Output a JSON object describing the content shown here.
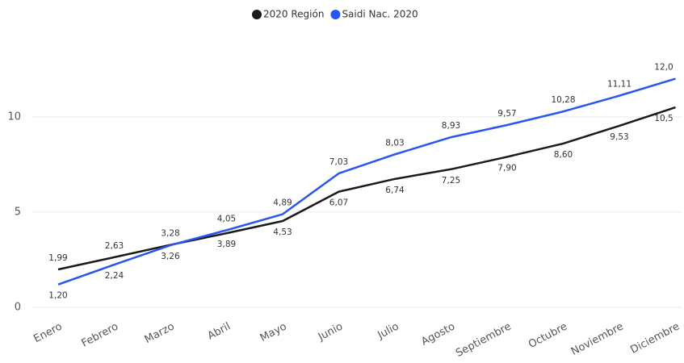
{
  "chart_data": {
    "type": "line",
    "categories": [
      "Enero",
      "Febrero",
      "Marzo",
      "Abril",
      "Mayo",
      "Junio",
      "Julio",
      "Agosto",
      "Septiembre",
      "Octubre",
      "Noviembre",
      "Diciembre"
    ],
    "series": [
      {
        "name": "2020 Región",
        "color": "#1a1a1a",
        "values": [
          1.99,
          2.63,
          3.28,
          3.89,
          4.53,
          6.07,
          6.74,
          7.25,
          7.9,
          8.6,
          9.53,
          10.5
        ],
        "value_labels": [
          "1,99",
          "2,63",
          "3,28",
          "3,89",
          "4,53",
          "6,07",
          "6,74",
          "7,25",
          "7,90",
          "8,60",
          "9,53",
          "10,5"
        ]
      },
      {
        "name": "Saidi Nac. 2020",
        "color": "#2a56f0",
        "values": [
          1.2,
          2.24,
          3.26,
          4.05,
          4.89,
          7.03,
          8.03,
          8.93,
          9.57,
          10.28,
          11.11,
          12.0
        ],
        "value_labels": [
          "1,20",
          "2,24",
          "3,26",
          "4,05",
          "4,89",
          "7,03",
          "8,03",
          "8,93",
          "9,57",
          "10,28",
          "11,11",
          "12,0"
        ]
      }
    ],
    "ylim": [
      0,
      13
    ],
    "yticks": [
      0,
      5,
      10
    ],
    "grid": true,
    "legend": "top"
  }
}
